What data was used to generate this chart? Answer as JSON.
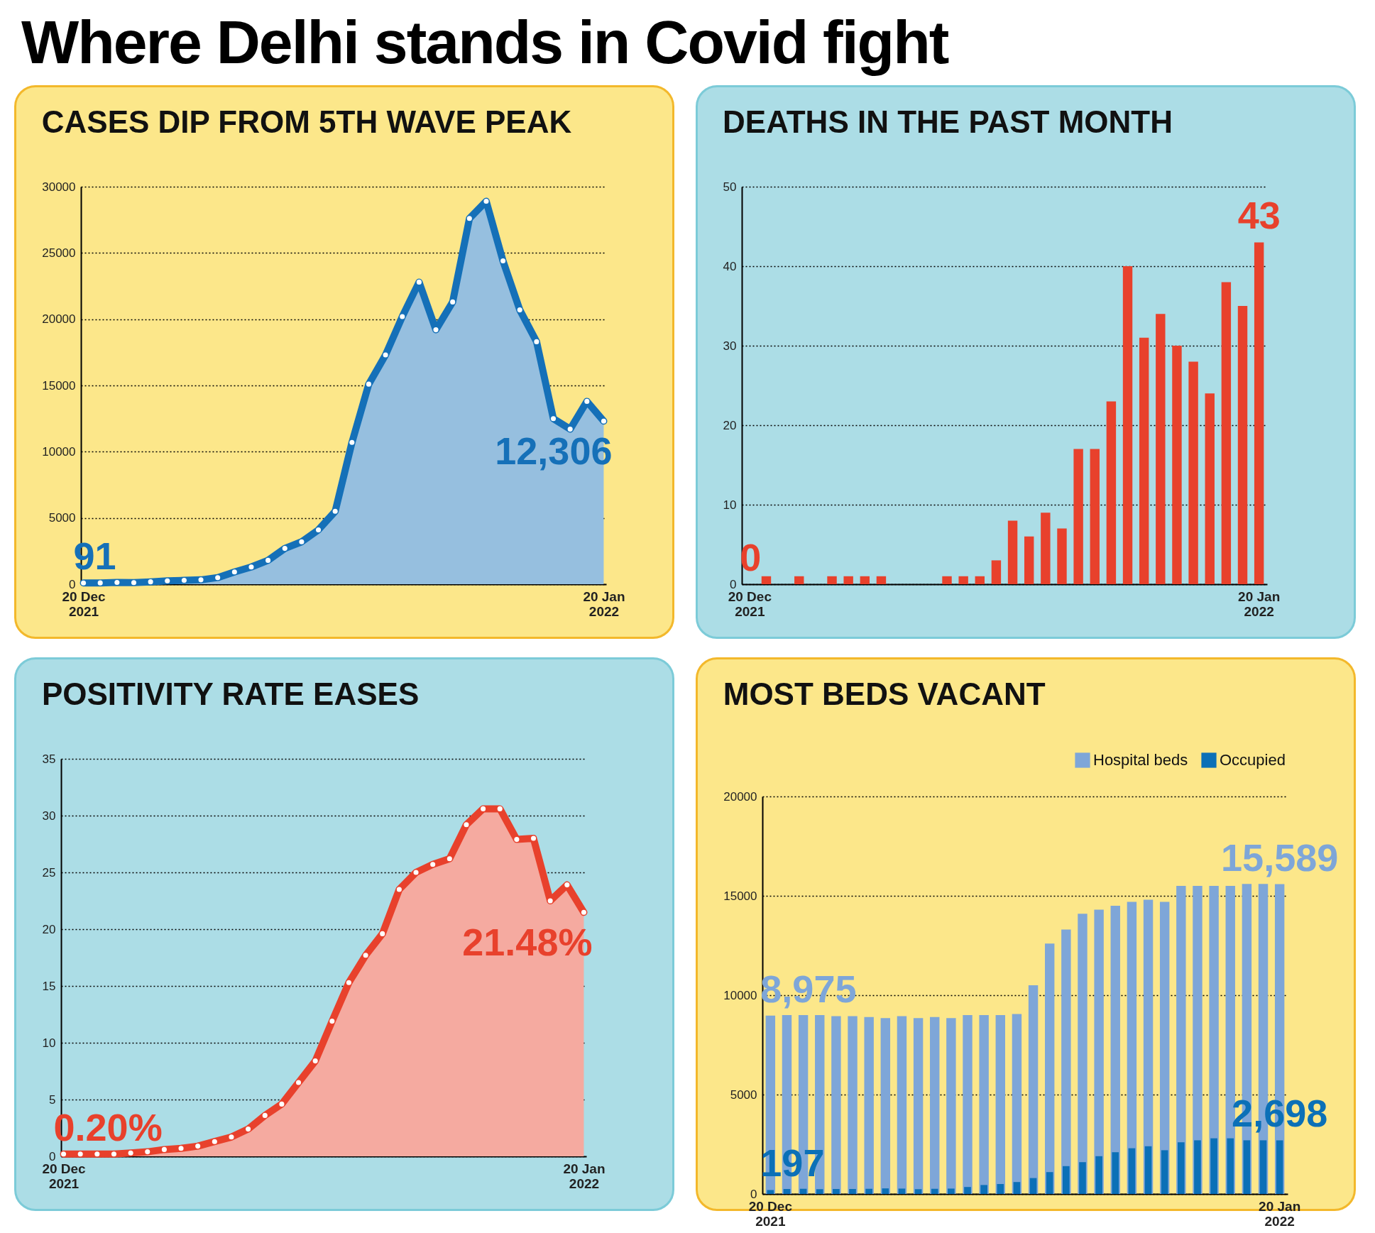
{
  "chart_data": [
    {
      "type": "other",
      "title": "Where Delhi stands in Covid fight"
    },
    {
      "type": "area",
      "title": "CASES DIP FROM 5TH WAVE PEAK",
      "categories": [
        "20 Dec 2021",
        null,
        null,
        null,
        null,
        null,
        null,
        null,
        null,
        null,
        null,
        null,
        null,
        null,
        null,
        null,
        null,
        null,
        null,
        null,
        null,
        null,
        null,
        null,
        null,
        null,
        null,
        null,
        null,
        null,
        null,
        "20 Jan 2022"
      ],
      "series": [
        {
          "color": "#1570b8",
          "values": [
            91,
            100,
            130,
            120,
            180,
            250,
            290,
            330,
            500,
            920,
            1300,
            1800,
            2700,
            3200,
            4100,
            5500,
            10700,
            15100,
            17300,
            20200,
            22800,
            19200,
            21300,
            27600,
            28900,
            24400,
            20700,
            18300,
            12500,
            11700,
            13800,
            12306
          ],
          "value_labels": [
            "91",
            null,
            null,
            null,
            null,
            null,
            null,
            null,
            null,
            null,
            null,
            null,
            null,
            null,
            null,
            null,
            null,
            null,
            null,
            null,
            null,
            null,
            null,
            null,
            null,
            null,
            null,
            null,
            null,
            null,
            null,
            "12,306"
          ]
        }
      ],
      "ylim": [
        0,
        30000
      ],
      "yticks": [
        0,
        5000,
        10000,
        15000,
        20000,
        25000,
        30000
      ],
      "grid": "y",
      "marker": "circle"
    },
    {
      "type": "bar",
      "title": "DEATHS IN THE PAST MONTH",
      "categories": [
        "20 Dec 2021",
        null,
        null,
        null,
        null,
        null,
        null,
        null,
        null,
        null,
        null,
        null,
        null,
        null,
        null,
        null,
        null,
        null,
        null,
        null,
        null,
        null,
        null,
        null,
        null,
        null,
        null,
        null,
        null,
        null,
        null,
        "20 Jan 2022"
      ],
      "series": [
        {
          "color": "#e8412c",
          "values": [
            0,
            1,
            0,
            1,
            0,
            1,
            1,
            1,
            1,
            0,
            0,
            0,
            1,
            1,
            1,
            3,
            8,
            6,
            9,
            7,
            17,
            17,
            23,
            40,
            31,
            34,
            30,
            28,
            24,
            38,
            35,
            43
          ],
          "value_labels": [
            "0",
            null,
            null,
            null,
            null,
            null,
            null,
            null,
            null,
            null,
            null,
            null,
            null,
            null,
            null,
            null,
            null,
            null,
            null,
            null,
            null,
            null,
            null,
            null,
            null,
            null,
            null,
            null,
            null,
            null,
            null,
            "43"
          ]
        }
      ],
      "ylim": [
        0,
        50
      ],
      "yticks": [
        0,
        10,
        20,
        30,
        40,
        50
      ],
      "grid": "y"
    },
    {
      "type": "area",
      "title": "POSITIVITY RATE EASES",
      "categories": [
        "20 Dec 2021",
        null,
        null,
        null,
        null,
        null,
        null,
        null,
        null,
        null,
        null,
        null,
        null,
        null,
        null,
        null,
        null,
        null,
        null,
        null,
        null,
        null,
        null,
        null,
        null,
        null,
        null,
        null,
        null,
        null,
        null,
        "20 Jan 2022"
      ],
      "series": [
        {
          "color": "#e8412c",
          "values": [
            0.2,
            0.2,
            0.2,
            0.2,
            0.3,
            0.4,
            0.6,
            0.7,
            0.9,
            1.3,
            1.7,
            2.4,
            3.6,
            4.6,
            6.5,
            8.4,
            11.9,
            15.3,
            17.7,
            19.6,
            23.5,
            25.0,
            25.7,
            26.2,
            29.2,
            30.6,
            30.6,
            27.9,
            28.0,
            22.5,
            23.9,
            21.48
          ],
          "value_labels": [
            "0.20%",
            null,
            null,
            null,
            null,
            null,
            null,
            null,
            null,
            null,
            null,
            null,
            null,
            null,
            null,
            null,
            null,
            null,
            null,
            null,
            null,
            null,
            null,
            null,
            null,
            null,
            null,
            null,
            null,
            null,
            null,
            "21.48%"
          ]
        }
      ],
      "ylim": [
        0,
        35
      ],
      "yticks": [
        0,
        5,
        10,
        15,
        20,
        25,
        30,
        35
      ],
      "grid": "y",
      "marker": "circle"
    },
    {
      "type": "bar",
      "title": "MOST BEDS VACANT",
      "categories": [
        "20 Dec 2021",
        null,
        null,
        null,
        null,
        null,
        null,
        null,
        null,
        null,
        null,
        null,
        null,
        null,
        null,
        null,
        null,
        null,
        null,
        null,
        null,
        null,
        null,
        null,
        null,
        null,
        null,
        null,
        null,
        null,
        null,
        "20 Jan 2022"
      ],
      "series": [
        {
          "name": "Hospital beds",
          "color": "#7ea6d8",
          "values": [
            8975,
            9000,
            9000,
            9000,
            8950,
            8950,
            8900,
            8850,
            8950,
            8850,
            8900,
            8850,
            9000,
            9000,
            9000,
            9050,
            10500,
            12600,
            13300,
            14100,
            14300,
            14500,
            14700,
            14800,
            14700,
            15500,
            15500,
            15500,
            15500,
            15600,
            15600,
            15589
          ],
          "value_labels": [
            "8,975",
            null,
            null,
            null,
            null,
            null,
            null,
            null,
            null,
            null,
            null,
            null,
            null,
            null,
            null,
            null,
            null,
            null,
            null,
            null,
            null,
            null,
            null,
            null,
            null,
            null,
            null,
            null,
            null,
            null,
            null,
            "15,589"
          ]
        },
        {
          "name": "Occupied",
          "color": "#0b70b7",
          "values": [
            197,
            250,
            260,
            240,
            250,
            250,
            260,
            280,
            270,
            240,
            260,
            270,
            350,
            450,
            500,
            600,
            800,
            1100,
            1400,
            1600,
            1900,
            2100,
            2300,
            2400,
            2200,
            2600,
            2700,
            2800,
            2800,
            2700,
            2700,
            2698
          ],
          "value_labels": [
            "197",
            null,
            null,
            null,
            null,
            null,
            null,
            null,
            null,
            null,
            null,
            null,
            null,
            null,
            null,
            null,
            null,
            null,
            null,
            null,
            null,
            null,
            null,
            null,
            null,
            null,
            null,
            null,
            null,
            null,
            null,
            "2,698"
          ]
        }
      ],
      "ylim": [
        0,
        20000
      ],
      "yticks": [
        0,
        5000,
        10000,
        15000,
        20000
      ],
      "grid": "y",
      "legend": "top right"
    }
  ]
}
